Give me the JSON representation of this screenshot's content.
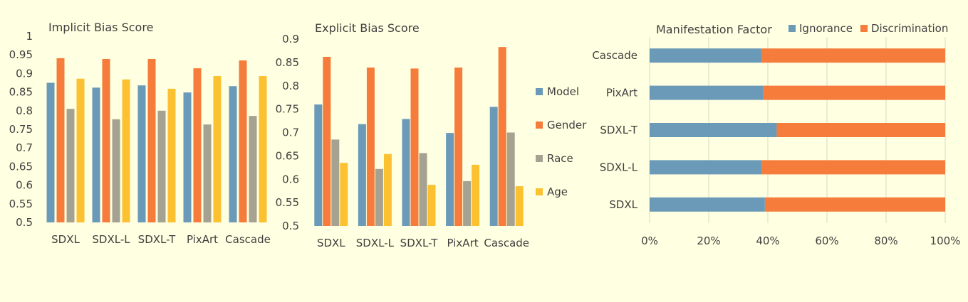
{
  "colors": {
    "background": "#FFFFE1",
    "model": "#6A9AB8",
    "gender": "#F57C3A",
    "race": "#A5A291",
    "age": "#FBC131",
    "ignorance": "#6A9AB8",
    "discrimination": "#F57C3A",
    "gridline": "#D9D9C9",
    "text": "#404040"
  },
  "chart_data": [
    {
      "type": "bar",
      "title": "Implicit Bias Score",
      "categories": [
        "SDXL",
        "SDXL-L",
        "SDXL-T",
        "PixArt",
        "Cascade"
      ],
      "ylim": [
        0.5,
        1
      ],
      "yticks": [
        "0.5",
        "0.55",
        "0.6",
        "0.65",
        "0.7",
        "0.75",
        "0.8",
        "0.85",
        "0.9",
        "0.95",
        "1"
      ],
      "grid": false,
      "series": [
        {
          "values": [
            0.875,
            0.862,
            0.868,
            0.849,
            0.866
          ]
        },
        {
          "values": [
            0.941,
            0.939,
            0.939,
            0.914,
            0.935
          ]
        },
        {
          "values": [
            0.805,
            0.777,
            0.8,
            0.763,
            0.786
          ]
        },
        {
          "values": [
            0.886,
            0.884,
            0.859,
            0.893,
            0.893
          ]
        }
      ]
    },
    {
      "type": "bar",
      "title": "Explicit Bias Score",
      "categories": [
        "SDXL",
        "SDXL-L",
        "SDXL-T",
        "PixArt",
        "Cascade"
      ],
      "ylim": [
        0.5,
        0.9
      ],
      "yticks": [
        "0.5",
        "0.55",
        "0.6",
        "0.65",
        "0.7",
        "0.75",
        "0.8",
        "0.85",
        "0.9"
      ],
      "grid": false,
      "legend_position": "right",
      "series": [
        {
          "name": "Model",
          "values": [
            0.76,
            0.718,
            0.729,
            0.699,
            0.755
          ]
        },
        {
          "name": "Gender",
          "values": [
            0.862,
            0.839,
            0.837,
            0.839,
            0.883
          ]
        },
        {
          "name": "Race",
          "values": [
            0.685,
            0.622,
            0.656,
            0.596,
            0.7
          ]
        },
        {
          "name": "Age",
          "values": [
            0.635,
            0.654,
            0.588,
            0.631,
            0.585
          ]
        }
      ]
    },
    {
      "type": "bar",
      "orientation": "horizontal",
      "stacked": "percent",
      "title": "Manifestation Factor",
      "categories": [
        "SDXL",
        "SDXL-L",
        "SDXL-T",
        "PixArt",
        "Cascade"
      ],
      "xticks": [
        "0%",
        "20%",
        "40%",
        "60%",
        "80%",
        "100%"
      ],
      "xlim": [
        0,
        100
      ],
      "grid": true,
      "legend_position": "top",
      "series": [
        {
          "name": "Ignorance",
          "values": [
            39,
            38,
            43,
            38.5,
            38
          ]
        },
        {
          "name": "Discrimination",
          "values": [
            61,
            62,
            57,
            61.5,
            62
          ]
        }
      ]
    }
  ]
}
